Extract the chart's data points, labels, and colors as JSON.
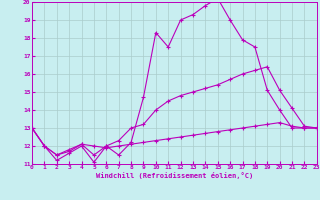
{
  "xlabel": "Windchill (Refroidissement éolien,°C)",
  "bg_color": "#c8eef0",
  "grid_color": "#aacccc",
  "line_color": "#bb00bb",
  "xlim": [
    0,
    23
  ],
  "ylim": [
    11,
    20
  ],
  "xticks": [
    0,
    1,
    2,
    3,
    4,
    5,
    6,
    7,
    8,
    9,
    10,
    11,
    12,
    13,
    14,
    15,
    16,
    17,
    18,
    19,
    20,
    21,
    22,
    23
  ],
  "yticks": [
    11,
    12,
    13,
    14,
    15,
    16,
    17,
    18,
    19,
    20
  ],
  "line1_x": [
    0,
    1,
    2,
    3,
    4,
    5,
    6,
    7,
    8,
    9,
    10,
    11,
    12,
    13,
    14,
    15,
    16,
    17,
    18,
    19,
    20,
    21,
    22,
    23
  ],
  "line1_y": [
    13,
    12,
    11.2,
    11.6,
    12.0,
    11.1,
    12.0,
    11.5,
    12.2,
    14.7,
    18.3,
    17.5,
    19.0,
    19.3,
    19.8,
    20.2,
    19.0,
    17.9,
    17.5,
    15.1,
    14.0,
    13.0,
    13.0,
    13.0
  ],
  "line2_x": [
    0,
    1,
    2,
    3,
    4,
    5,
    6,
    7,
    8,
    9,
    10,
    11,
    12,
    13,
    14,
    15,
    16,
    17,
    18,
    19,
    20,
    21,
    22,
    23
  ],
  "line2_y": [
    13,
    12,
    11.5,
    11.7,
    12.1,
    12.0,
    11.9,
    12.0,
    12.1,
    12.2,
    12.3,
    12.4,
    12.5,
    12.6,
    12.7,
    12.8,
    12.9,
    13.0,
    13.1,
    13.2,
    13.3,
    13.1,
    13.0,
    13.0
  ],
  "line3_x": [
    0,
    1,
    2,
    3,
    4,
    5,
    6,
    7,
    8,
    9,
    10,
    11,
    12,
    13,
    14,
    15,
    16,
    17,
    18,
    19,
    20,
    21,
    22,
    23
  ],
  "line3_y": [
    13,
    12,
    11.5,
    11.8,
    12.1,
    11.5,
    12.0,
    12.3,
    13.0,
    13.2,
    14.0,
    14.5,
    14.8,
    15.0,
    15.2,
    15.4,
    15.7,
    16.0,
    16.2,
    16.4,
    15.1,
    14.1,
    13.1,
    13.0
  ]
}
